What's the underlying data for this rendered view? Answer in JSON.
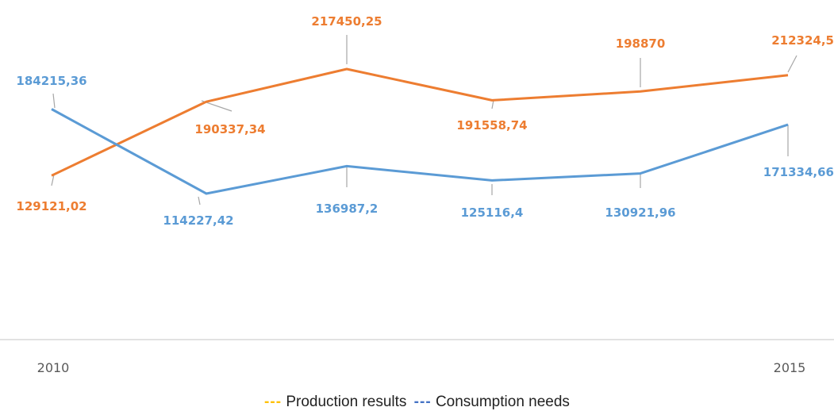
{
  "chart_data": {
    "type": "line",
    "x": [
      "2010",
      "2011",
      "2012",
      "2013",
      "2014",
      "2015"
    ],
    "x_tick_labels": [
      "2010",
      "",
      "",
      "",
      "",
      "2015"
    ],
    "series": [
      {
        "name": "Production results",
        "color": "#ED7D31",
        "legend_color": "#FFC000",
        "values": [
          129121.02,
          190337.34,
          217450.25,
          191558.74,
          198870,
          212324.5
        ],
        "labels": [
          "129121,02",
          "190337,34",
          "217450,25",
          "191558,74",
          "198870",
          "212324,5"
        ]
      },
      {
        "name": "Consumption needs",
        "color": "#5B9BD5",
        "legend_color": "#4472C4",
        "values": [
          184215.36,
          114227.42,
          136987.2,
          125116.4,
          130921.96,
          171334.66
        ],
        "labels": [
          "184215,36",
          "114227,42",
          "136987,2",
          "125116,4",
          "130921,96",
          "171334,66"
        ]
      }
    ],
    "grid": false,
    "legend_position": "bottom"
  },
  "legend": {
    "dash": "---"
  }
}
